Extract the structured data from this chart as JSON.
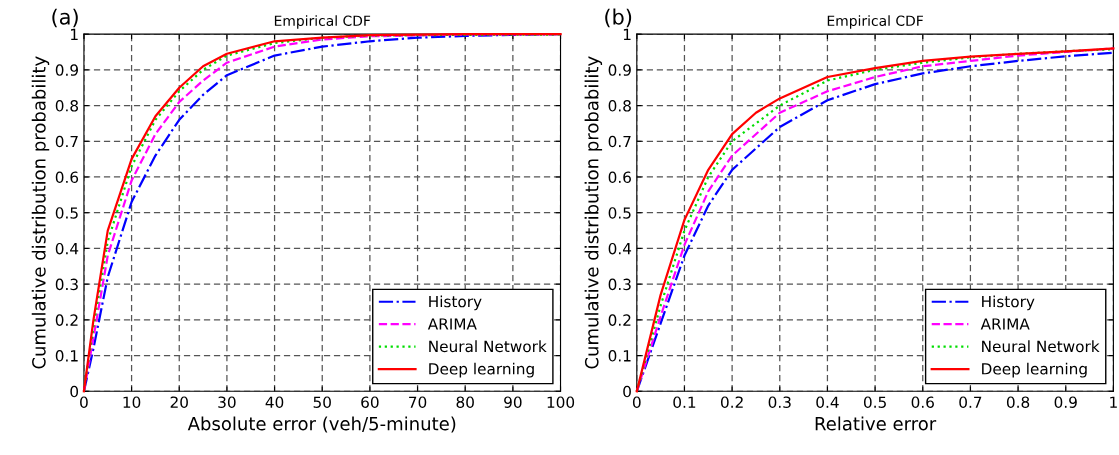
{
  "chart_data": [
    {
      "type": "line",
      "title": "Empirical CDF",
      "xlabel": "Absolute error (veh/5-minute)",
      "ylabel": "Cumulative distribution probability",
      "annotations": [
        "(a)"
      ],
      "xlim": [
        0,
        100
      ],
      "ylim": [
        0,
        1
      ],
      "xticks": [
        0,
        10,
        20,
        30,
        40,
        50,
        60,
        70,
        80,
        90,
        100
      ],
      "yticks": [
        0,
        0.1,
        0.2,
        0.3,
        0.4,
        0.5,
        0.6,
        0.7,
        0.8,
        0.9,
        1
      ],
      "grid": true,
      "legend": "bottom right",
      "series": [
        {
          "name": "History",
          "color": "#0000ff",
          "line_style": "dashdot",
          "x": [
            0,
            2,
            5,
            10,
            15,
            20,
            25,
            30,
            40,
            50,
            60,
            70,
            80,
            90,
            100
          ],
          "values": [
            0,
            0.12,
            0.32,
            0.53,
            0.66,
            0.76,
            0.83,
            0.885,
            0.94,
            0.965,
            0.98,
            0.99,
            0.995,
            0.998,
            1
          ]
        },
        {
          "name": "ARIMA",
          "color": "#ff00ff",
          "line_style": "dashed",
          "x": [
            0,
            2,
            5,
            10,
            15,
            20,
            25,
            30,
            40,
            50,
            60,
            80,
            100
          ],
          "values": [
            0,
            0.15,
            0.38,
            0.59,
            0.72,
            0.81,
            0.87,
            0.92,
            0.965,
            0.985,
            0.994,
            0.999,
            1
          ]
        },
        {
          "name": "Neural Network",
          "color": "#00dd00",
          "line_style": "dotted",
          "x": [
            0,
            2,
            5,
            10,
            15,
            20,
            25,
            30,
            40,
            50,
            60,
            80,
            100
          ],
          "values": [
            0,
            0.18,
            0.42,
            0.63,
            0.76,
            0.84,
            0.9,
            0.94,
            0.975,
            0.99,
            0.996,
            0.998,
            0.999
          ]
        },
        {
          "name": "Deep learning",
          "color": "#ff0000",
          "line_style": "solid",
          "x": [
            0,
            2,
            5,
            10,
            15,
            20,
            25,
            30,
            40,
            50,
            60,
            80,
            100
          ],
          "values": [
            0,
            0.2,
            0.45,
            0.65,
            0.77,
            0.85,
            0.91,
            0.945,
            0.98,
            0.99,
            0.997,
            1,
            1
          ]
        }
      ]
    },
    {
      "type": "line",
      "title": "Empirical CDF",
      "xlabel": "Relative error",
      "ylabel": "Cumulative distribution probability",
      "annotations": [
        "(b)"
      ],
      "xlim": [
        0,
        1
      ],
      "ylim": [
        0,
        1
      ],
      "xticks": [
        0,
        0.1,
        0.2,
        0.3,
        0.4,
        0.5,
        0.6,
        0.7,
        0.8,
        0.9,
        1
      ],
      "yticks": [
        0,
        0.1,
        0.2,
        0.3,
        0.4,
        0.5,
        0.6,
        0.7,
        0.8,
        0.9,
        1
      ],
      "grid": true,
      "legend": "bottom right",
      "series": [
        {
          "name": "History",
          "color": "#0000ff",
          "line_style": "dashdot",
          "x": [
            0,
            0.05,
            0.1,
            0.15,
            0.2,
            0.3,
            0.4,
            0.5,
            0.6,
            0.7,
            0.8,
            0.9,
            1
          ],
          "values": [
            0,
            0.19,
            0.38,
            0.52,
            0.62,
            0.74,
            0.815,
            0.86,
            0.89,
            0.91,
            0.925,
            0.938,
            0.948
          ]
        },
        {
          "name": "ARIMA",
          "color": "#ff00ff",
          "line_style": "dashed",
          "x": [
            0,
            0.05,
            0.1,
            0.15,
            0.2,
            0.3,
            0.4,
            0.5,
            0.6,
            0.7,
            0.8,
            0.9,
            1
          ],
          "values": [
            0,
            0.21,
            0.41,
            0.56,
            0.66,
            0.78,
            0.84,
            0.88,
            0.91,
            0.925,
            0.94,
            0.95,
            0.96
          ]
        },
        {
          "name": "Neural Network",
          "color": "#00dd00",
          "line_style": "dotted",
          "x": [
            0,
            0.05,
            0.1,
            0.15,
            0.2,
            0.3,
            0.4,
            0.5,
            0.6,
            0.7,
            0.8,
            0.9,
            1
          ],
          "values": [
            0,
            0.24,
            0.45,
            0.6,
            0.7,
            0.8,
            0.87,
            0.9,
            0.92,
            0.935,
            0.945,
            0.952,
            0.958
          ]
        },
        {
          "name": "Deep learning",
          "color": "#ff0000",
          "line_style": "solid",
          "x": [
            0,
            0.05,
            0.1,
            0.15,
            0.2,
            0.25,
            0.3,
            0.4,
            0.5,
            0.6,
            0.7,
            0.8,
            0.9,
            1
          ],
          "values": [
            0,
            0.27,
            0.48,
            0.62,
            0.72,
            0.78,
            0.82,
            0.88,
            0.905,
            0.925,
            0.937,
            0.945,
            0.952,
            0.96
          ]
        }
      ]
    }
  ]
}
